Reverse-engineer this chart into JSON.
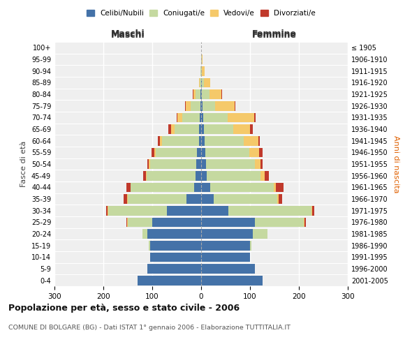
{
  "age_groups": [
    "0-4",
    "5-9",
    "10-14",
    "15-19",
    "20-24",
    "25-29",
    "30-34",
    "35-39",
    "40-44",
    "45-49",
    "50-54",
    "55-59",
    "60-64",
    "65-69",
    "70-74",
    "75-79",
    "80-84",
    "85-89",
    "90-94",
    "95-99",
    "100+"
  ],
  "birth_years": [
    "2001-2005",
    "1996-2000",
    "1991-1995",
    "1986-1990",
    "1981-1985",
    "1976-1980",
    "1971-1975",
    "1966-1970",
    "1961-1965",
    "1956-1960",
    "1951-1955",
    "1946-1950",
    "1941-1945",
    "1936-1940",
    "1931-1935",
    "1926-1930",
    "1921-1925",
    "1916-1920",
    "1911-1915",
    "1906-1910",
    "≤ 1905"
  ],
  "maschi": {
    "celibe": [
      130,
      110,
      105,
      105,
      110,
      100,
      70,
      30,
      14,
      12,
      10,
      8,
      5,
      4,
      3,
      2,
      1,
      0,
      0,
      0,
      0
    ],
    "coniugato": [
      0,
      0,
      0,
      2,
      10,
      50,
      120,
      120,
      130,
      100,
      95,
      85,
      75,
      50,
      35,
      20,
      10,
      3,
      1,
      0,
      0
    ],
    "vedovo": [
      0,
      0,
      0,
      0,
      0,
      1,
      1,
      1,
      1,
      1,
      2,
      3,
      5,
      8,
      10,
      10,
      5,
      2,
      1,
      0,
      0
    ],
    "divorziato": [
      0,
      0,
      0,
      0,
      0,
      2,
      3,
      8,
      8,
      5,
      3,
      5,
      3,
      5,
      2,
      1,
      1,
      0,
      0,
      0,
      0
    ]
  },
  "femmine": {
    "nubile": [
      125,
      110,
      100,
      100,
      105,
      110,
      55,
      25,
      18,
      12,
      10,
      8,
      7,
      5,
      4,
      3,
      2,
      1,
      0,
      0,
      0
    ],
    "coniugata": [
      0,
      0,
      0,
      3,
      30,
      100,
      170,
      130,
      130,
      110,
      100,
      90,
      80,
      60,
      50,
      25,
      15,
      5,
      2,
      1,
      0
    ],
    "vedova": [
      0,
      0,
      0,
      0,
      1,
      2,
      2,
      3,
      5,
      8,
      12,
      20,
      30,
      35,
      55,
      40,
      25,
      12,
      5,
      2,
      0
    ],
    "divorziata": [
      0,
      0,
      0,
      0,
      0,
      2,
      5,
      8,
      15,
      8,
      3,
      8,
      3,
      5,
      2,
      2,
      1,
      1,
      0,
      0,
      0
    ]
  },
  "colors": {
    "celibe": "#4472a8",
    "coniugato": "#c5d9a0",
    "vedovo": "#f5c96a",
    "divorziato": "#c0392b"
  },
  "title": "Popolazione per età, sesso e stato civile - 2006",
  "subtitle": "COMUNE DI BOLGARE (BG) - Dati ISTAT 1° gennaio 2006 - Elaborazione TUTTITALIA.IT",
  "xlabel_left": "Maschi",
  "xlabel_right": "Femmine",
  "ylabel_left": "Fasce di età",
  "ylabel_right": "Anni di nascita",
  "xlim": 300,
  "bg_color": "#ffffff",
  "plot_bg": "#efefef"
}
